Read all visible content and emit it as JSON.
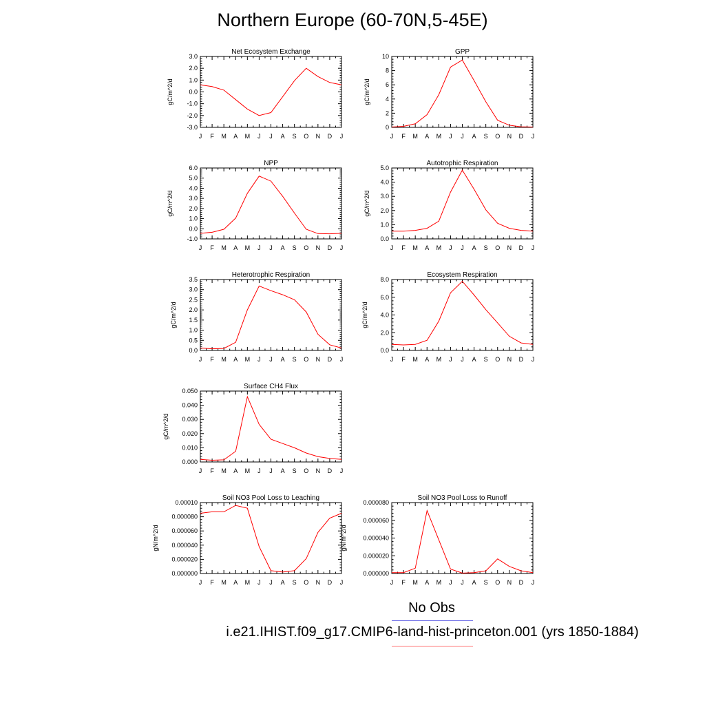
{
  "title": "Northern Europe (60-70N,5-45E)",
  "legend": {
    "obs_label": "No Obs",
    "obs_color": "#6f6fe8",
    "case_label": "i.e21.IHIST.f09_g17.CMIP6-land-hist-princeton.001 (yrs 1850-1884)",
    "case_color": "#ff0000"
  },
  "chart_data": [
    {
      "type": "line",
      "title": "Net Ecosystem Exchange",
      "ylabel": "gC/m^2/d",
      "categories": [
        "J",
        "F",
        "M",
        "A",
        "M",
        "J",
        "J",
        "A",
        "S",
        "O",
        "N",
        "D",
        "J"
      ],
      "ylim": [
        -3.0,
        3.0
      ],
      "yticks": [
        "3.0",
        "2.0",
        "1.0",
        "0.0",
        "-1.0",
        "-2.0",
        "-3.0"
      ],
      "values": [
        0.6,
        0.45,
        0.15,
        -0.65,
        -1.45,
        -2.0,
        -1.75,
        -0.4,
        0.95,
        2.0,
        1.3,
        0.8,
        0.6
      ]
    },
    {
      "type": "line",
      "title": "GPP",
      "ylabel": "gC/m^2/d",
      "categories": [
        "J",
        "F",
        "M",
        "A",
        "M",
        "J",
        "J",
        "A",
        "S",
        "O",
        "N",
        "D",
        "J"
      ],
      "ylim": [
        0,
        10
      ],
      "yticks": [
        "10",
        "8",
        "6",
        "4",
        "2",
        "0"
      ],
      "values": [
        0.05,
        0.15,
        0.5,
        1.8,
        4.6,
        8.5,
        9.5,
        6.6,
        3.6,
        1.0,
        0.3,
        0.08,
        0.05
      ]
    },
    {
      "type": "line",
      "title": "NPP",
      "ylabel": "gC/m^2/d",
      "categories": [
        "J",
        "F",
        "M",
        "A",
        "M",
        "J",
        "J",
        "A",
        "S",
        "O",
        "N",
        "D",
        "J"
      ],
      "ylim": [
        -1.0,
        6.0
      ],
      "yticks": [
        "6.0",
        "5.0",
        "4.0",
        "3.0",
        "2.0",
        "1.0",
        "0.0",
        "-1.0"
      ],
      "values": [
        -0.45,
        -0.35,
        -0.05,
        1.05,
        3.5,
        5.2,
        4.7,
        3.2,
        1.55,
        -0.05,
        -0.48,
        -0.5,
        -0.45
      ]
    },
    {
      "type": "line",
      "title": "Autotrophic Respiration",
      "ylabel": "gC/m^2/d",
      "categories": [
        "J",
        "F",
        "M",
        "A",
        "M",
        "J",
        "J",
        "A",
        "S",
        "O",
        "N",
        "D",
        "J"
      ],
      "ylim": [
        0,
        5.0
      ],
      "yticks": [
        "5.0",
        "4.0",
        "3.0",
        "2.0",
        "1.0",
        "0.0"
      ],
      "values": [
        0.55,
        0.55,
        0.6,
        0.75,
        1.25,
        3.3,
        4.85,
        3.5,
        2.05,
        1.1,
        0.75,
        0.6,
        0.55
      ]
    },
    {
      "type": "line",
      "title": "Heterotrophic Respiration",
      "ylabel": "gC/m^2/d",
      "categories": [
        "J",
        "F",
        "M",
        "A",
        "M",
        "J",
        "J",
        "A",
        "S",
        "O",
        "N",
        "D",
        "J"
      ],
      "ylim": [
        0,
        3.5
      ],
      "yticks": [
        "3.5",
        "3.0",
        "2.5",
        "2.0",
        "1.5",
        "1.0",
        "0.5",
        "0.0"
      ],
      "values": [
        0.12,
        0.08,
        0.1,
        0.4,
        2.0,
        3.18,
        2.95,
        2.75,
        2.5,
        1.9,
        0.8,
        0.28,
        0.12
      ]
    },
    {
      "type": "line",
      "title": "Ecosystem Respiration",
      "ylabel": "gC/m^2/d",
      "categories": [
        "J",
        "F",
        "M",
        "A",
        "M",
        "J",
        "J",
        "A",
        "S",
        "O",
        "N",
        "D",
        "J"
      ],
      "ylim": [
        0,
        8.0
      ],
      "yticks": [
        "8.0",
        "6.0",
        "4.0",
        "2.0",
        "0.0"
      ],
      "values": [
        0.68,
        0.62,
        0.68,
        1.15,
        3.3,
        6.5,
        7.8,
        6.25,
        4.6,
        3.1,
        1.6,
        0.85,
        0.68
      ]
    },
    {
      "type": "line",
      "title": "Surface CH4 Flux",
      "ylabel": "gC/m^2/d",
      "categories": [
        "J",
        "F",
        "M",
        "A",
        "M",
        "J",
        "J",
        "A",
        "S",
        "O",
        "N",
        "D",
        "J"
      ],
      "ylim": [
        0,
        0.05
      ],
      "yticks": [
        "0.050",
        "0.040",
        "0.030",
        "0.020",
        "0.010",
        "0.000"
      ],
      "values": [
        0.0018,
        0.0012,
        0.0015,
        0.0075,
        0.046,
        0.0265,
        0.016,
        0.013,
        0.01,
        0.0063,
        0.0038,
        0.0025,
        0.0018
      ]
    },
    {
      "type": "line",
      "title": "Soil NO3 Pool Loss to Leaching",
      "ylabel": "gN/m^2/d",
      "categories": [
        "J",
        "F",
        "M",
        "A",
        "M",
        "J",
        "J",
        "A",
        "S",
        "O",
        "N",
        "D",
        "J"
      ],
      "ylim": [
        0,
        0.0001
      ],
      "yticks": [
        "0.00010",
        "0.000080",
        "0.000060",
        "0.000040",
        "0.000020",
        "0.000000"
      ],
      "values": [
        8.5e-05,
        8.7e-05,
        8.7e-05,
        9.6e-05,
        9.2e-05,
        3.8e-05,
        4e-06,
        2e-06,
        4e-06,
        2.1e-05,
        5.8e-05,
        7.8e-05,
        8.5e-05
      ]
    },
    {
      "type": "line",
      "title": "Soil NO3 Pool Loss to Runoff",
      "ylabel": "gN/m^2/d",
      "categories": [
        "J",
        "F",
        "M",
        "A",
        "M",
        "J",
        "J",
        "A",
        "S",
        "O",
        "N",
        "D",
        "J"
      ],
      "ylim": [
        0,
        8e-05
      ],
      "yticks": [
        "0.000080",
        "0.000060",
        "0.000040",
        "0.000020",
        "0.000000"
      ],
      "values": [
        1e-06,
        1e-06,
        6e-06,
        7.1e-05,
        3.8e-05,
        5e-06,
        5e-07,
        1e-06,
        3e-06,
        1.65e-05,
        8e-06,
        3e-06,
        1e-06
      ]
    }
  ]
}
